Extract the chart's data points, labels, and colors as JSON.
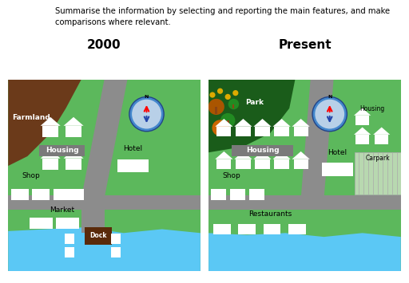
{
  "title_2000": "2000",
  "title_present": "Present",
  "subtitle_line1": "Summarise the information by selecting and reporting the main features, and make",
  "subtitle_line2": "comparisons where relevant.",
  "bg_color": "#ffffff",
  "green_color": "#5cb85c",
  "dark_green": "#1a5c1a",
  "road_color": "#8c8c8c",
  "water_color": "#5bc8f5",
  "farmland_color": "#6b3a1a",
  "carpark_color": "#b8d8b0",
  "dock_color": "#5a2a0a",
  "compass_blue": "#4488cc",
  "compass_border": "#224488"
}
